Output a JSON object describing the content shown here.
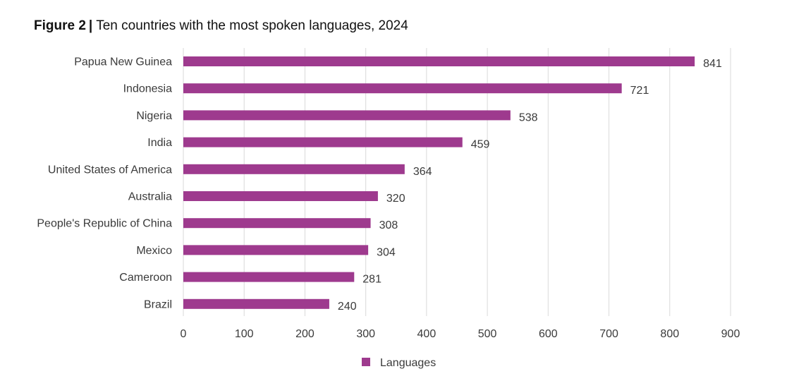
{
  "figure": {
    "label": "Figure 2",
    "separator": "|",
    "title": "Ten countries with the most spoken languages, 2024"
  },
  "chart_data": {
    "type": "bar",
    "orientation": "horizontal",
    "categories": [
      "Papua New Guinea",
      "Indonesia",
      "Nigeria",
      "India",
      "United States of America",
      "Australia",
      "People's Republic of China",
      "Mexico",
      "Cameroon",
      "Brazil"
    ],
    "series": [
      {
        "name": "Languages",
        "values": [
          841,
          721,
          538,
          459,
          364,
          320,
          308,
          304,
          281,
          240
        ],
        "color": "#9e3a8e"
      }
    ],
    "xlim": [
      0,
      900
    ],
    "xticks": [
      0,
      100,
      200,
      300,
      400,
      500,
      600,
      700,
      800,
      900
    ],
    "grid": "vertical",
    "legend": "bottom",
    "data_labels": true
  }
}
